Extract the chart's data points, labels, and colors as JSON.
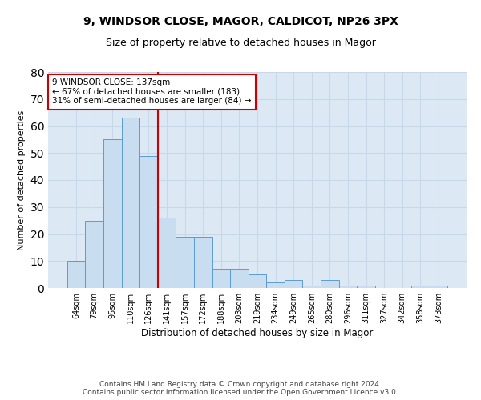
{
  "title1": "9, WINDSOR CLOSE, MAGOR, CALDICOT, NP26 3PX",
  "title2": "Size of property relative to detached houses in Magor",
  "xlabel": "Distribution of detached houses by size in Magor",
  "ylabel": "Number of detached properties",
  "categories": [
    "64sqm",
    "79sqm",
    "95sqm",
    "110sqm",
    "126sqm",
    "141sqm",
    "157sqm",
    "172sqm",
    "188sqm",
    "203sqm",
    "219sqm",
    "234sqm",
    "249sqm",
    "265sqm",
    "280sqm",
    "296sqm",
    "311sqm",
    "327sqm",
    "342sqm",
    "358sqm",
    "373sqm"
  ],
  "values": [
    10,
    25,
    55,
    63,
    49,
    26,
    19,
    19,
    7,
    7,
    5,
    2,
    3,
    1,
    3,
    1,
    1,
    0,
    0,
    1,
    1
  ],
  "bar_color": "#c9ddf0",
  "bar_edge_color": "#5b9bd5",
  "subject_line_color": "#cc0000",
  "annotation_line1": "9 WINDSOR CLOSE: 137sqm",
  "annotation_line2": "← 67% of detached houses are smaller (183)",
  "annotation_line3": "31% of semi-detached houses are larger (84) →",
  "annotation_box_color": "#ffffff",
  "annotation_box_edge": "#cc0000",
  "ylim": [
    0,
    80
  ],
  "yticks": [
    0,
    10,
    20,
    30,
    40,
    50,
    60,
    70,
    80
  ],
  "grid_color": "#c8d8e8",
  "background_color": "#dce9f5",
  "footer_text": "Contains HM Land Registry data © Crown copyright and database right 2024.\nContains public sector information licensed under the Open Government Licence v3.0.",
  "title1_fontsize": 10,
  "title2_fontsize": 9,
  "xlabel_fontsize": 8.5,
  "ylabel_fontsize": 8,
  "tick_fontsize": 7,
  "annotation_fontsize": 7.5,
  "footer_fontsize": 6.5
}
